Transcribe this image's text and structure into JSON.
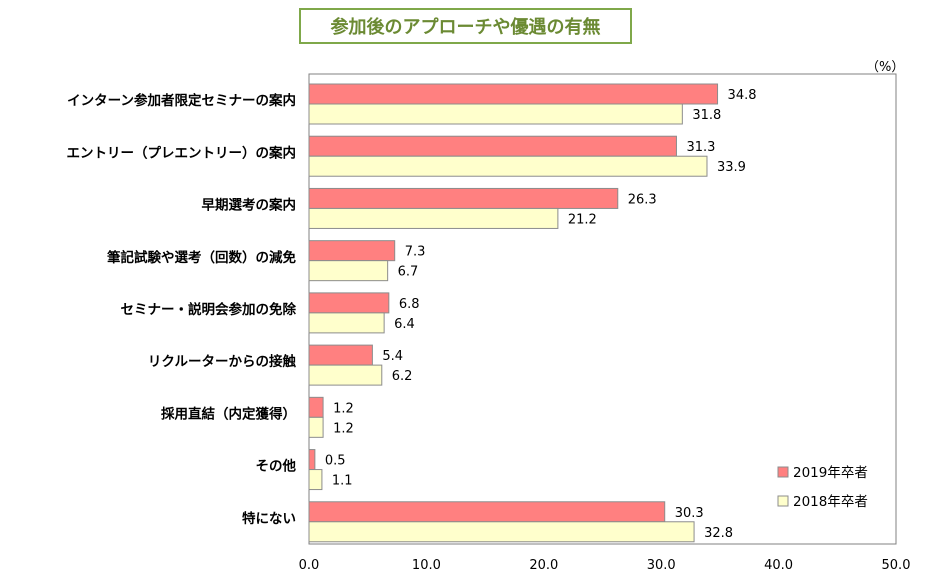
{
  "title": "参加後のアプローチや優遇の有無",
  "unit": "（%）",
  "colors": {
    "series2019": "#ff8080",
    "series2018": "#ffffcc",
    "barStroke": "#8c8c8c",
    "titleBorder": "#7fa84a",
    "titleText": "#6b8a33"
  },
  "chart_data": {
    "type": "bar",
    "orientation": "horizontal",
    "title": "参加後のアプローチや優遇の有無",
    "unit": "（%）",
    "categories": [
      "インターン参加者限定セミナーの案内",
      "エントリー（プレエントリー）の案内",
      "早期選考の案内",
      "筆記試験や選考（回数）の減免",
      "セミナー・説明会参加の免除",
      "リクルーターからの接触",
      "採用直結（内定獲得）",
      "その他",
      "特にない"
    ],
    "series": [
      {
        "name": "2019年卒者",
        "values": [
          34.8,
          31.3,
          26.3,
          7.3,
          6.8,
          5.4,
          1.2,
          0.5,
          30.3
        ]
      },
      {
        "name": "2018年卒者",
        "values": [
          31.8,
          33.9,
          21.2,
          6.7,
          6.4,
          6.2,
          1.2,
          1.1,
          32.8
        ]
      }
    ],
    "xlim": [
      0,
      50
    ],
    "xticks": [
      "0.0",
      "10.0",
      "20.0",
      "30.0",
      "40.0",
      "50.0"
    ],
    "grid": false,
    "legend": "bottom-right"
  }
}
